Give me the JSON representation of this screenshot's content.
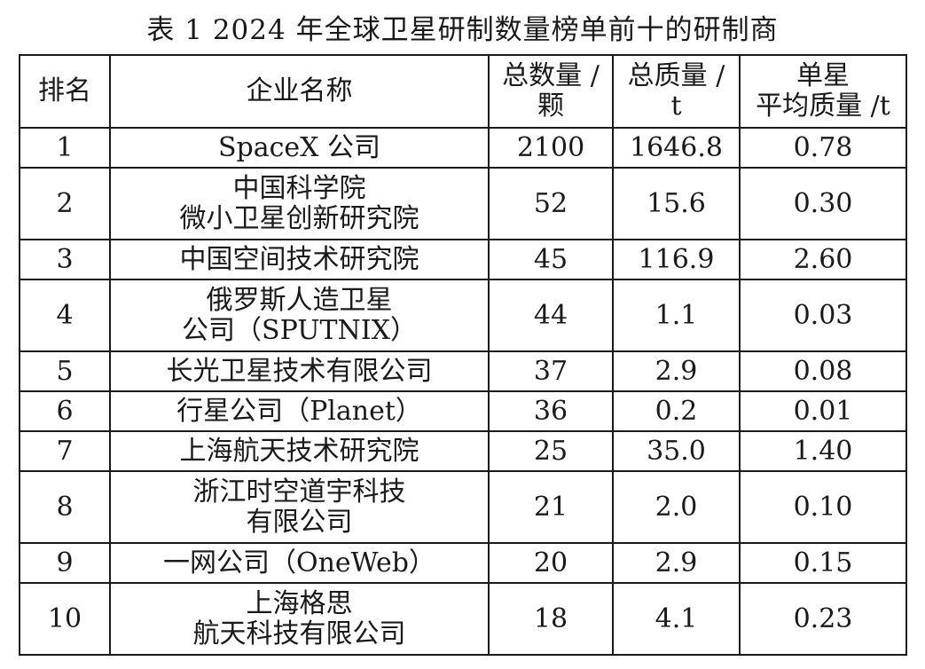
{
  "caption": "表 1   2024 年全球卫星研制数量榜单前十的研制商",
  "table": {
    "headers": {
      "rank": [
        "排名"
      ],
      "name": [
        "企业名称"
      ],
      "count": [
        "总数量 /",
        "颗"
      ],
      "mass": [
        "总质量 /",
        "t"
      ],
      "avg": [
        "单星",
        "平均质量 /t"
      ]
    },
    "rows": [
      {
        "rank": "1",
        "name": [
          "SpaceX 公司"
        ],
        "count": "2100",
        "mass": "1646.8",
        "avg": "0.78"
      },
      {
        "rank": "2",
        "name": [
          "中国科学院",
          "微小卫星创新研究院"
        ],
        "count": "52",
        "mass": "15.6",
        "avg": "0.30"
      },
      {
        "rank": "3",
        "name": [
          "中国空间技术研究院"
        ],
        "count": "45",
        "mass": "116.9",
        "avg": "2.60"
      },
      {
        "rank": "4",
        "name": [
          "俄罗斯人造卫星",
          "公司（SPUTNIX）"
        ],
        "count": "44",
        "mass": "1.1",
        "avg": "0.03"
      },
      {
        "rank": "5",
        "name": [
          "长光卫星技术有限公司"
        ],
        "count": "37",
        "mass": "2.9",
        "avg": "0.08"
      },
      {
        "rank": "6",
        "name": [
          "行星公司（Planet）"
        ],
        "count": "36",
        "mass": "0.2",
        "avg": "0.01"
      },
      {
        "rank": "7",
        "name": [
          "上海航天技术研究院"
        ],
        "count": "25",
        "mass": "35.0",
        "avg": "1.40"
      },
      {
        "rank": "8",
        "name": [
          "浙江时空道宇科技",
          "有限公司"
        ],
        "count": "21",
        "mass": "2.0",
        "avg": "0.10"
      },
      {
        "rank": "9",
        "name": [
          "一网公司（OneWeb）"
        ],
        "count": "20",
        "mass": "2.9",
        "avg": "0.15"
      },
      {
        "rank": "10",
        "name": [
          "上海格思",
          "航天科技有限公司"
        ],
        "count": "18",
        "mass": "4.1",
        "avg": "0.23"
      }
    ]
  }
}
